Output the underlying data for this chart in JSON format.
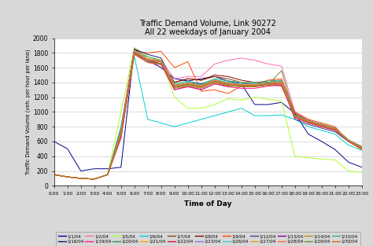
{
  "title": "Traffic Demand Volume, Link 90272",
  "subtitle": "All 22 weekdays of January 2004",
  "xlabel": "Time of Day",
  "ylabel": "Traffic Demand Volume (veh. per hour per lane)",
  "ylim": [
    0,
    2000
  ],
  "yticks": [
    0,
    200,
    400,
    600,
    800,
    1000,
    1200,
    1400,
    1600,
    1800,
    2000
  ],
  "hours": [
    0,
    1,
    2,
    3,
    4,
    5,
    6,
    7,
    8,
    9,
    10,
    11,
    12,
    13,
    14,
    15,
    16,
    17,
    18,
    19,
    20,
    21,
    22,
    23
  ],
  "background_color": "#d8d8d8",
  "plot_background": "#ffffff",
  "dates": [
    "1/1/04",
    "1/2/04",
    "1/5/04",
    "1/6/04",
    "1/7/04",
    "1/8/04",
    "1/9/04",
    "1/12/04",
    "1/13/04",
    "1/14/04",
    "1/15/04",
    "1/16/04",
    "1/19/04",
    "1/20/04",
    "1/21/04",
    "1/22/04",
    "1/23/04",
    "1/26/04",
    "1/27/04",
    "1/28/04",
    "1/29/04",
    "1/30/04"
  ],
  "colors": [
    "#00008B",
    "#FF69B4",
    "#ADFF2F",
    "#00CED1",
    "#8B4513",
    "#8B0000",
    "#FF4500",
    "#483D8B",
    "#8B008B",
    "#B8860B",
    "#3CB371",
    "#191970",
    "#FF1493",
    "#2E8B57",
    "#FFA500",
    "#DC143C",
    "#9370DB",
    "#48D1CC",
    "#DAA520",
    "#FF6347",
    "#6B8E23",
    "#D2691E"
  ],
  "series": [
    [
      600,
      500,
      200,
      230,
      230,
      250,
      1860,
      1700,
      1600,
      1450,
      1420,
      1450,
      1480,
      1420,
      1380,
      1100,
      1100,
      1130,
      980,
      700,
      600,
      490,
      320,
      250
    ],
    [
      150,
      120,
      100,
      90,
      150,
      800,
      1870,
      1750,
      1700,
      1450,
      1480,
      1480,
      1650,
      1700,
      1730,
      1700,
      1650,
      1620,
      1000,
      900,
      800,
      750,
      600,
      500
    ],
    [
      150,
      120,
      100,
      90,
      150,
      1000,
      1870,
      1750,
      1700,
      1200,
      1050,
      1050,
      1100,
      1180,
      1160,
      1200,
      1170,
      1150,
      400,
      380,
      360,
      350,
      200,
      180
    ],
    [
      150,
      120,
      100,
      90,
      150,
      800,
      1750,
      900,
      850,
      800,
      850,
      900,
      950,
      1000,
      1050,
      950,
      950,
      960,
      900,
      800,
      750,
      700,
      550,
      480
    ],
    [
      150,
      120,
      100,
      90,
      150,
      700,
      1820,
      1700,
      1650,
      1400,
      1450,
      1430,
      1480,
      1450,
      1400,
      1380,
      1380,
      1350,
      950,
      850,
      800,
      750,
      600,
      520
    ],
    [
      150,
      120,
      100,
      90,
      150,
      750,
      1850,
      1720,
      1680,
      1400,
      1450,
      1430,
      1500,
      1480,
      1430,
      1400,
      1400,
      1380,
      980,
      880,
      830,
      780,
      620,
      530
    ],
    [
      150,
      120,
      100,
      90,
      150,
      750,
      1820,
      1800,
      1820,
      1600,
      1680,
      1280,
      1300,
      1250,
      1350,
      1380,
      1430,
      1450,
      1000,
      900,
      850,
      800,
      600,
      490
    ],
    [
      150,
      120,
      100,
      90,
      150,
      650,
      1820,
      1700,
      1650,
      1300,
      1350,
      1300,
      1380,
      1350,
      1350,
      1350,
      1380,
      1380,
      900,
      830,
      780,
      730,
      600,
      500
    ],
    [
      150,
      120,
      100,
      90,
      150,
      700,
      1800,
      1700,
      1680,
      1350,
      1380,
      1350,
      1420,
      1380,
      1380,
      1380,
      1400,
      1420,
      950,
      880,
      830,
      780,
      620,
      520
    ],
    [
      150,
      120,
      100,
      90,
      150,
      650,
      1780,
      1680,
      1650,
      1320,
      1350,
      1320,
      1400,
      1350,
      1350,
      1350,
      1380,
      1380,
      930,
      860,
      810,
      760,
      610,
      510
    ],
    [
      150,
      120,
      100,
      90,
      150,
      720,
      1820,
      1750,
      1700,
      1380,
      1420,
      1380,
      1450,
      1420,
      1400,
      1400,
      1420,
      1430,
      960,
      880,
      830,
      780,
      620,
      520
    ],
    [
      150,
      120,
      100,
      90,
      150,
      700,
      1850,
      1780,
      1730,
      1350,
      1400,
      1380,
      1430,
      1400,
      1380,
      1380,
      1400,
      1420,
      950,
      880,
      830,
      780,
      610,
      510
    ],
    [
      150,
      120,
      100,
      90,
      150,
      650,
      1780,
      1670,
      1640,
      1300,
      1340,
      1300,
      1380,
      1340,
      1320,
      1320,
      1350,
      1360,
      920,
      850,
      800,
      750,
      600,
      500
    ],
    [
      150,
      120,
      100,
      90,
      150,
      700,
      1820,
      1700,
      1680,
      1350,
      1380,
      1350,
      1420,
      1380,
      1360,
      1360,
      1380,
      1400,
      940,
      870,
      820,
      770,
      610,
      510
    ],
    [
      150,
      120,
      100,
      90,
      150,
      720,
      1830,
      1710,
      1690,
      1360,
      1390,
      1360,
      1430,
      1390,
      1370,
      1370,
      1390,
      1410,
      945,
      875,
      825,
      775,
      615,
      515
    ],
    [
      150,
      120,
      100,
      90,
      150,
      710,
      1840,
      1720,
      1695,
      1365,
      1395,
      1365,
      1435,
      1395,
      1375,
      1375,
      1395,
      1415,
      947,
      877,
      827,
      777,
      617,
      517
    ],
    [
      150,
      120,
      100,
      90,
      150,
      700,
      1820,
      1700,
      1680,
      1350,
      1380,
      1350,
      1420,
      1380,
      1360,
      1360,
      1380,
      1400,
      940,
      870,
      820,
      770,
      610,
      510
    ],
    [
      150,
      120,
      100,
      90,
      150,
      730,
      1840,
      1720,
      1700,
      1370,
      1400,
      1370,
      1440,
      1400,
      1380,
      1380,
      1400,
      1420,
      948,
      878,
      828,
      778,
      618,
      518
    ],
    [
      150,
      120,
      100,
      90,
      150,
      720,
      1830,
      1720,
      1700,
      1360,
      1390,
      1360,
      1430,
      1390,
      1370,
      1370,
      1390,
      1410,
      945,
      875,
      825,
      775,
      615,
      515
    ],
    [
      150,
      120,
      100,
      90,
      150,
      700,
      1820,
      1700,
      1680,
      1350,
      1380,
      1350,
      1420,
      1380,
      1360,
      1360,
      1380,
      1400,
      940,
      870,
      820,
      770,
      610,
      510
    ],
    [
      150,
      120,
      100,
      90,
      150,
      700,
      1800,
      1680,
      1660,
      1340,
      1370,
      1340,
      1410,
      1370,
      1350,
      1350,
      1370,
      1560,
      935,
      865,
      815,
      765,
      605,
      505
    ],
    [
      150,
      120,
      100,
      90,
      150,
      680,
      1790,
      1670,
      1650,
      1330,
      1360,
      1330,
      1400,
      1360,
      1340,
      1340,
      1360,
      1380,
      930,
      860,
      810,
      760,
      600,
      500
    ]
  ]
}
